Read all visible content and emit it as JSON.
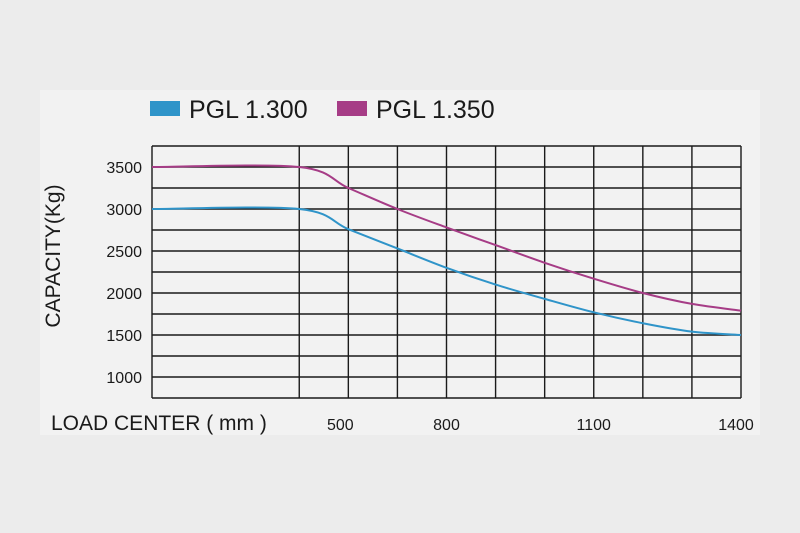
{
  "chart_data": {
    "type": "line",
    "xlabel": "LOAD CENTER ( mm )",
    "ylabel": "CAPACITY(Kg)",
    "x_ticks": [
      500,
      800,
      1100,
      1400
    ],
    "y_ticks": [
      1000,
      1500,
      2000,
      2500,
      3000,
      3500
    ],
    "xlim": [
      200,
      1400
    ],
    "ylim": [
      750,
      3750
    ],
    "grid": true,
    "legend_position": "top-left",
    "series": [
      {
        "name": "PGL 1.300",
        "color": "#2f94c9",
        "x": [
          200,
          500,
          600,
          700,
          800,
          900,
          1000,
          1100,
          1200,
          1300,
          1400
        ],
        "y": [
          3000,
          3000,
          2760,
          2530,
          2300,
          2100,
          1930,
          1770,
          1640,
          1540,
          1500
        ]
      },
      {
        "name": "PGL 1.350",
        "color": "#a63c86",
        "x": [
          200,
          500,
          600,
          700,
          800,
          900,
          1000,
          1100,
          1200,
          1300,
          1400
        ],
        "y": [
          3500,
          3500,
          3250,
          3000,
          2780,
          2570,
          2360,
          2170,
          2000,
          1870,
          1790
        ]
      }
    ]
  }
}
